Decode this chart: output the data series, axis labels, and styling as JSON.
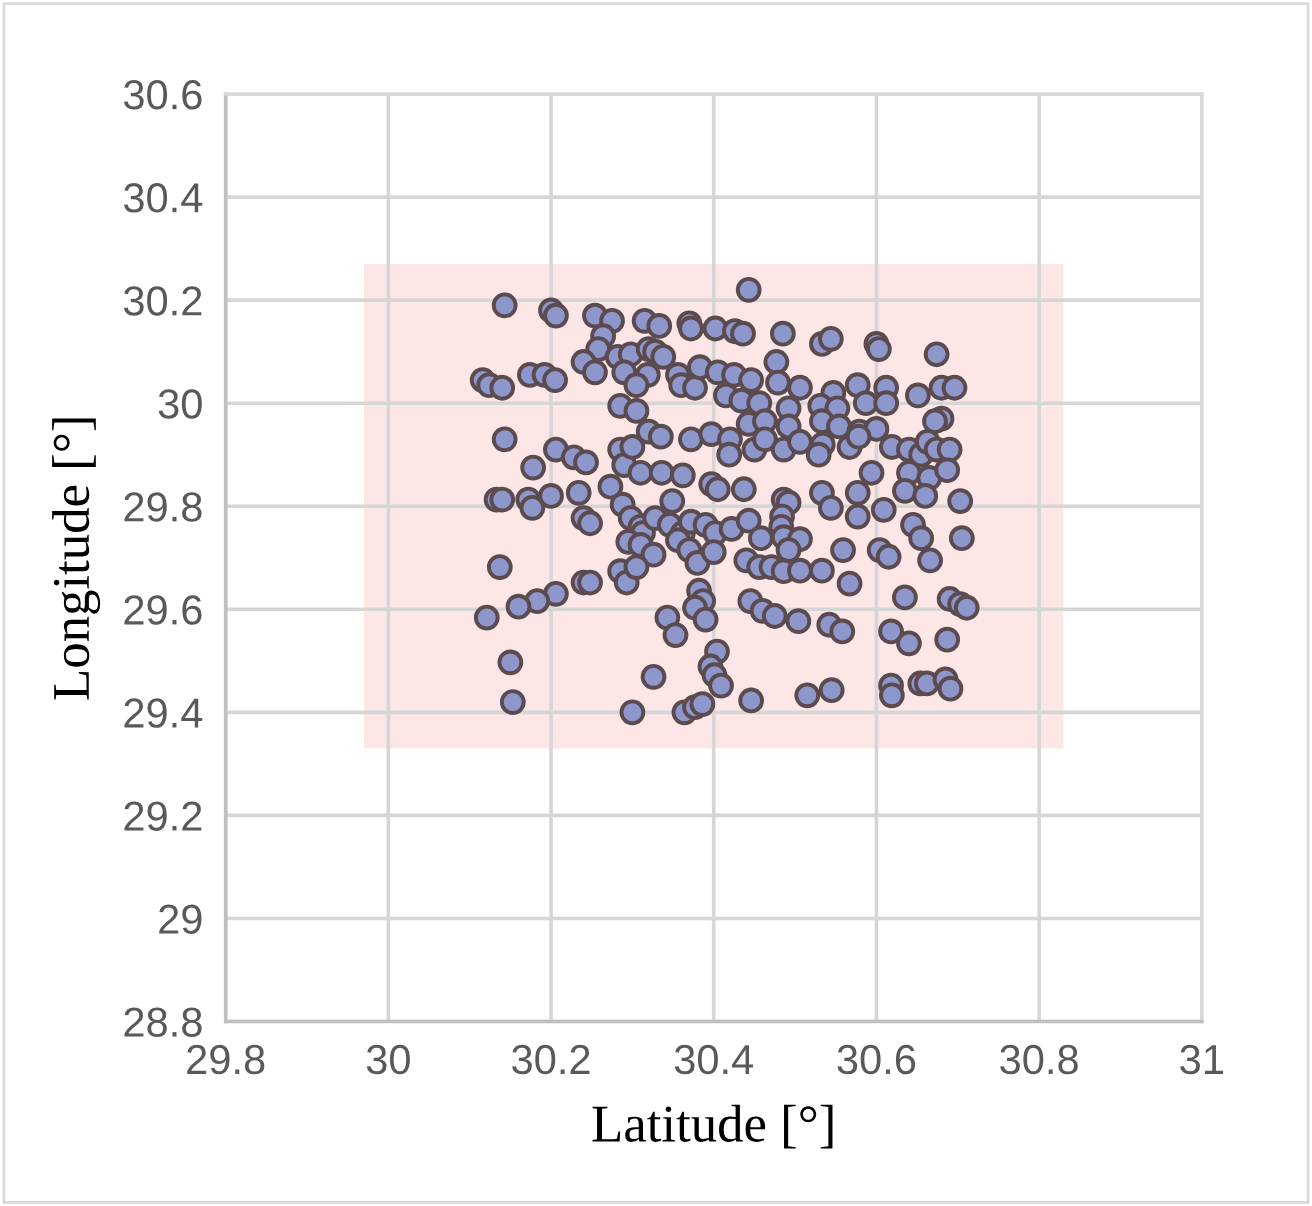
{
  "chart_data": {
    "type": "scatter",
    "xlabel": "Latitude [°]",
    "ylabel": "Longitude [°]",
    "xlim": [
      29.8,
      31
    ],
    "xticks": [
      29.8,
      30,
      30.2,
      30.4,
      30.6,
      30.8,
      31
    ],
    "ylim": [
      28.8,
      30.6
    ],
    "yticks": [
      28.8,
      29,
      29.2,
      29.4,
      29.6,
      29.8,
      30,
      30.2,
      30.4,
      30.6
    ],
    "grid": true,
    "series": [
      {
        "type": "line",
        "color": "#fde6e6",
        "x": [
          29.97,
          30.83
        ],
        "values": [
          null,
          null
        ],
        "lower": [
          29.33,
          29.33
        ],
        "upper": [
          30.27,
          30.27
        ]
      },
      {
        "marker": "circle",
        "color": "#8e97cc",
        "x": [
          30.443,
          30.143,
          30.2,
          30.206,
          30.254,
          30.275,
          30.315,
          30.333,
          30.37,
          30.372,
          30.402,
          30.426,
          30.436,
          30.485,
          30.533,
          30.544,
          30.6,
          30.603,
          30.674,
          30.264,
          30.258,
          30.24,
          30.254,
          30.282,
          30.298,
          30.32,
          30.328,
          30.338,
          30.29,
          30.319,
          30.305,
          30.356,
          30.36,
          30.377,
          30.383,
          30.405,
          30.425,
          30.446,
          30.477,
          30.479,
          30.506,
          30.547,
          30.577,
          30.612,
          30.651,
          30.68,
          30.696,
          30.116,
          30.124,
          30.14,
          30.174,
          30.192,
          30.205,
          30.415,
          30.434,
          30.456,
          30.285,
          30.305,
          30.492,
          30.531,
          30.552,
          30.587,
          30.612,
          30.68,
          30.672,
          30.492,
          30.533,
          30.554,
          30.579,
          30.6,
          30.32,
          30.335,
          30.372,
          30.397,
          30.42,
          30.443,
          30.463,
          30.419,
          30.45,
          30.463,
          30.486,
          30.506,
          30.534,
          30.529,
          30.567,
          30.578,
          30.619,
          30.64,
          30.655,
          30.663,
          30.674,
          30.69,
          30.143,
          30.206,
          30.228,
          30.243,
          30.285,
          30.29,
          30.3,
          30.31,
          30.336,
          30.362,
          30.178,
          30.594,
          30.64,
          30.665,
          30.635,
          30.687,
          30.437,
          30.486,
          30.492,
          30.397,
          30.405,
          30.533,
          30.544,
          30.577,
          30.577,
          30.609,
          30.66,
          30.703,
          30.133,
          30.14,
          30.172,
          30.177,
          30.2,
          30.234,
          30.24,
          30.248,
          30.273,
          30.288,
          30.298,
          30.31,
          30.313,
          30.328,
          30.349,
          30.346,
          30.362,
          30.372,
          30.39,
          30.402,
          30.422,
          30.443,
          30.458,
          30.484,
          30.483,
          30.486,
          30.506,
          30.492,
          30.645,
          30.655,
          30.705,
          30.295,
          30.31,
          30.326,
          30.356,
          30.37,
          30.38,
          30.4,
          30.44,
          30.456,
          30.471,
          30.486,
          30.506,
          30.533,
          30.559,
          30.567,
          30.604,
          30.615,
          30.666,
          30.137,
          30.285,
          30.293,
          30.305,
          30.24,
          30.248,
          30.206,
          30.183,
          30.16,
          30.121,
          30.382,
          30.387,
          30.377,
          30.39,
          30.343,
          30.353,
          30.445,
          30.46,
          30.475,
          30.504,
          30.542,
          30.558,
          30.635,
          30.618,
          30.64,
          30.69,
          30.703,
          30.711,
          30.687,
          30.15,
          30.153,
          30.326,
          30.3,
          30.404,
          30.396,
          30.401,
          30.409,
          30.364,
          30.377,
          30.386,
          30.446,
          30.515,
          30.545,
          30.618,
          30.619,
          30.654,
          30.662,
          30.685,
          30.691
        ],
        "values": [
          30.22,
          30.19,
          30.18,
          30.17,
          30.17,
          30.16,
          30.16,
          30.15,
          30.155,
          30.145,
          30.145,
          30.14,
          30.135,
          30.135,
          30.115,
          30.125,
          30.115,
          30.105,
          30.095,
          30.13,
          30.105,
          30.08,
          30.06,
          30.09,
          30.095,
          30.105,
          30.1,
          30.09,
          30.06,
          30.055,
          30.035,
          30.055,
          30.035,
          30.03,
          30.07,
          30.06,
          30.055,
          30.045,
          30.08,
          30.04,
          30.03,
          30.02,
          30.035,
          30.03,
          30.015,
          30.03,
          30.03,
          30.045,
          30.035,
          30.03,
          30.055,
          30.055,
          30.045,
          30.015,
          30.005,
          30.0,
          29.995,
          29.985,
          29.99,
          29.995,
          29.99,
          30.0,
          30.0,
          29.97,
          29.965,
          29.955,
          29.965,
          29.955,
          29.945,
          29.95,
          29.945,
          29.935,
          29.93,
          29.94,
          29.93,
          29.96,
          29.965,
          29.9,
          29.91,
          29.93,
          29.91,
          29.925,
          29.92,
          29.9,
          29.915,
          29.935,
          29.915,
          29.91,
          29.9,
          29.925,
          29.91,
          29.91,
          29.93,
          29.91,
          29.895,
          29.885,
          29.91,
          29.88,
          29.915,
          29.865,
          29.865,
          29.86,
          29.875,
          29.865,
          29.865,
          29.855,
          29.83,
          29.87,
          29.833,
          29.813,
          29.807,
          29.843,
          29.833,
          29.826,
          29.797,
          29.826,
          29.78,
          29.793,
          29.82,
          29.81,
          29.813,
          29.813,
          29.813,
          29.797,
          29.82,
          29.826,
          29.777,
          29.767,
          29.838,
          29.803,
          29.777,
          29.76,
          29.748,
          29.777,
          29.81,
          29.764,
          29.748,
          29.77,
          29.764,
          29.748,
          29.756,
          29.772,
          29.738,
          29.78,
          29.76,
          29.74,
          29.736,
          29.715,
          29.764,
          29.738,
          29.738,
          29.731,
          29.725,
          29.706,
          29.734,
          29.715,
          29.69,
          29.711,
          29.695,
          29.682,
          29.682,
          29.674,
          29.675,
          29.675,
          29.715,
          29.65,
          29.715,
          29.702,
          29.695,
          29.682,
          29.674,
          29.652,
          29.682,
          29.652,
          29.652,
          29.63,
          29.616,
          29.605,
          29.584,
          29.636,
          29.616,
          29.603,
          29.58,
          29.584,
          29.55,
          29.616,
          29.597,
          29.587,
          29.577,
          29.57,
          29.557,
          29.623,
          29.557,
          29.534,
          29.62,
          29.61,
          29.603,
          29.541,
          29.497,
          29.42,
          29.469,
          29.4,
          29.518,
          29.489,
          29.472,
          29.452,
          29.4,
          29.41,
          29.416,
          29.423,
          29.433,
          29.443,
          29.452,
          29.433,
          29.456,
          29.456,
          29.464,
          29.446
        ]
      }
    ]
  }
}
